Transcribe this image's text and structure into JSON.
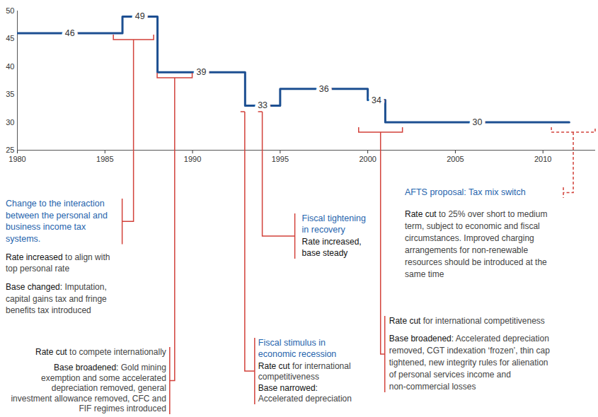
{
  "chart_data": {
    "type": "line",
    "x": [
      1980,
      1986,
      1988,
      1993,
      1995,
      2000,
      2001,
      2011.5
    ],
    "values": [
      46,
      49,
      39,
      33,
      36,
      34,
      30,
      30
    ],
    "color": "#1d4f91",
    "line_style": "step",
    "data_labels": true,
    "grid": false,
    "xlim": [
      1980,
      2013
    ],
    "xticks": [
      1980,
      1985,
      1990,
      1995,
      2000,
      2005,
      2010
    ],
    "ylim": [
      25,
      50
    ],
    "yticks": [
      25,
      30,
      35,
      40,
      45,
      50
    ],
    "annotations": [
      {
        "period": [
          1985.5,
          1987.8
        ],
        "title": [
          "Change to the interaction",
          "between the personal and",
          "business income tax",
          "systems."
        ],
        "items": [
          {
            "lead": "Rate increased",
            "rest": "to align with",
            "more": [
              "top personal rate"
            ]
          },
          {
            "lead": "Base changed:",
            "rest": "Imputation,",
            "more": [
              "capital gains tax and fringe",
              "benefits tax introduced"
            ]
          }
        ]
      },
      {
        "period": [
          1988,
          1990
        ],
        "items": [
          {
            "lead": "Rate cut",
            "rest": "to compete internationally"
          },
          {
            "lead": "Base broadened:",
            "rest": "Gold mining",
            "more": [
              "exemption and some accelerated",
              "depreciation removed, general",
              "investment allowance removed, CFC and",
              "FIF regimes introduced"
            ]
          }
        ]
      },
      {
        "period": [
          1993,
          1993
        ],
        "title": [
          "Fiscal stimulus in",
          "economic recession"
        ],
        "items": [
          {
            "lead": "Rate cut",
            "rest": "for international",
            "more": [
              "competitiveness"
            ]
          },
          {
            "lead": "Base narrowed:",
            "more": [
              "Accelerated depreciation"
            ]
          }
        ]
      },
      {
        "period": [
          1994,
          1994
        ],
        "title": [
          "Fiscal tightening",
          "in recovery"
        ],
        "items": [
          {
            "lead": "Rate increased,"
          },
          {
            "lead": "base steady"
          }
        ]
      },
      {
        "period": [
          1999.5,
          2002
        ],
        "items": [
          {
            "lead": "Rate cut",
            "rest": "for international competitiveness"
          },
          {
            "lead": "Base broadened:",
            "rest": "Accelerated depreciation",
            "more": [
              "removed, CGT indexation ‘frozen’, thin cap",
              "tightened, new integrity rules for alienation",
              "of personal services income and",
              "non-commercial losses"
            ]
          }
        ]
      },
      {
        "period": [
          2010.5,
          2013
        ],
        "line_style": "dashed",
        "title": [
          "AFTS proposal: Tax mix switch"
        ],
        "items": [
          {
            "lead": "Rate cut",
            "rest": "to 25% over short to medium",
            "more": [
              "term, subject to economic and fiscal",
              "circumstances. Improved charging",
              "arrangements for non-renewable",
              "resources should be introduced at the",
              "same time"
            ]
          }
        ]
      }
    ]
  }
}
